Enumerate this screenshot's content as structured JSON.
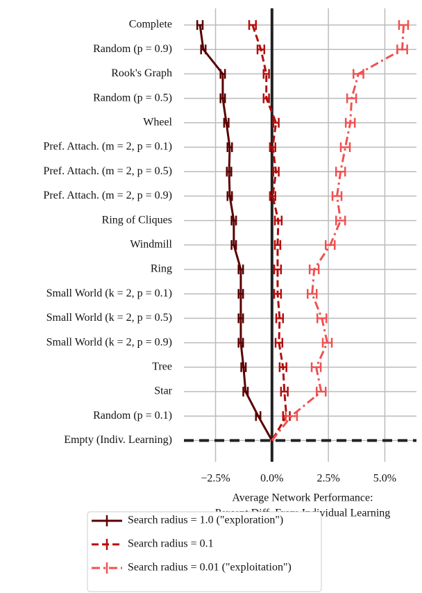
{
  "chart_data": {
    "type": "line",
    "orientation": "horizontal",
    "categories": [
      "Complete",
      "Random (p = 0.9)",
      "Rook's Graph",
      "Random (p = 0.5)",
      "Wheel",
      "Pref. Attach. (m = 2, p = 0.1)",
      "Pref. Attach. (m = 2, p = 0.5)",
      "Pref. Attach. (m = 2, p = 0.9)",
      "Ring of Cliques",
      "Windmill",
      "Ring",
      "Small World (k = 2, p = 0.1)",
      "Small World (k = 2, p = 0.5)",
      "Small World (k = 2, p = 0.9)",
      "Tree",
      "Star",
      "Random (p = 0.1)",
      "Empty (Indiv. Learning)"
    ],
    "xlabel": [
      "Average Network Performance:",
      "Percent Diff. From Individual Learning"
    ],
    "xlim": [
      -3.9,
      6.4
    ],
    "xticks": [
      {
        "value": -2.5,
        "label": "−2.5%"
      },
      {
        "value": 0,
        "label": "0.0%"
      },
      {
        "value": 2.5,
        "label": "2.5%"
      },
      {
        "value": 5,
        "label": "5.0%"
      }
    ],
    "grid": true,
    "legend": "bottom",
    "series": [
      {
        "name": "Search radius = 1.0 (\"exploration\")",
        "color": "#5a0000",
        "linestyle": "solid",
        "values": [
          -3.19,
          -3.04,
          -2.18,
          -2.18,
          -2.02,
          -1.87,
          -1.9,
          -1.87,
          -1.69,
          -1.69,
          -1.38,
          -1.38,
          -1.38,
          -1.38,
          -1.26,
          -1.17,
          -0.61,
          0
        ],
        "errors": [
          0.12,
          0.1,
          0.1,
          0.1,
          0.1,
          0.1,
          0.1,
          0.1,
          0.1,
          0.1,
          0.1,
          0.1,
          0.1,
          0.1,
          0.1,
          0.1,
          0.1,
          null
        ]
      },
      {
        "name": "Search radius = 0.1",
        "color": "#b40c0c",
        "linestyle": "dashed",
        "values": [
          -0.86,
          -0.49,
          -0.25,
          -0.25,
          0.18,
          0.03,
          0.18,
          0.03,
          0.28,
          0.25,
          0.25,
          0.25,
          0.34,
          0.31,
          0.49,
          0.55,
          0.64,
          0
        ],
        "errors": [
          0.15,
          0.15,
          0.12,
          0.12,
          0.12,
          0.12,
          0.12,
          0.12,
          0.15,
          0.12,
          0.15,
          0.15,
          0.15,
          0.15,
          0.15,
          0.15,
          0.15,
          null
        ]
      },
      {
        "name": "Search radius = 0.01 (\"exploitation\")",
        "color": "#f05050",
        "linestyle": "dashdot",
        "values": [
          5.83,
          5.77,
          3.83,
          3.53,
          3.47,
          3.25,
          3.04,
          2.88,
          3.04,
          2.58,
          1.87,
          1.78,
          2.21,
          2.45,
          1.96,
          2.18,
          0.86,
          0
        ],
        "errors": [
          0.2,
          0.22,
          0.22,
          0.2,
          0.2,
          0.2,
          0.2,
          0.2,
          0.2,
          0.2,
          0.2,
          0.2,
          0.2,
          0.2,
          0.2,
          0.2,
          0.25,
          null
        ]
      }
    ]
  }
}
